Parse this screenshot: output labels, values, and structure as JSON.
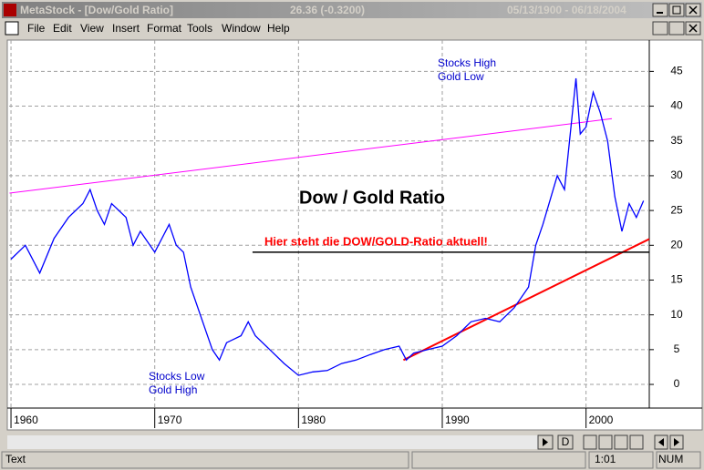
{
  "window": {
    "title": "MetaStock - [Dow/Gold Ratio]",
    "quote": "26.36 (-0.3200)",
    "range": "05/13/1900 - 06/18/2004"
  },
  "menu": [
    "File",
    "Edit",
    "View",
    "Insert",
    "Format",
    "Tools",
    "Window",
    "Help"
  ],
  "chart_data": {
    "type": "line",
    "title": "Dow / Gold Ratio",
    "x": [
      1960,
      1961,
      1962,
      1963,
      1964,
      1965,
      1965.5,
      1966,
      1966.5,
      1967,
      1968,
      1968.5,
      1969,
      1970,
      1971,
      1971.5,
      1972,
      1972.5,
      1973,
      1973.5,
      1974,
      1974.5,
      1975,
      1976,
      1976.5,
      1977,
      1978,
      1979,
      1980,
      1981,
      1982,
      1983,
      1984,
      1985,
      1986,
      1987,
      1987.5,
      1988,
      1989,
      1990,
      1991,
      1992,
      1993,
      1994,
      1995,
      1996,
      1996.5,
      1997,
      1998,
      1998.5,
      1999,
      1999.3,
      1999.6,
      2000,
      2000.5,
      2001,
      2001.5,
      2002,
      2002.5,
      2003,
      2003.5,
      2004
    ],
    "series": [
      {
        "color": "#0000ff",
        "values": [
          18,
          20,
          16,
          21,
          24,
          26,
          28,
          25,
          23,
          26,
          24,
          20,
          22,
          19,
          23,
          20,
          19,
          14,
          11,
          8,
          5,
          3.5,
          6,
          7,
          9,
          7,
          5,
          3,
          1.3,
          1.8,
          2,
          3,
          3.5,
          4.3,
          5,
          5.5,
          3.5,
          4.5,
          5,
          5.5,
          7,
          9,
          9.5,
          9,
          11,
          14,
          20,
          23,
          30,
          28,
          38,
          44,
          36,
          37,
          42,
          39,
          35,
          27,
          22,
          26,
          24,
          26.4
        ]
      }
    ],
    "trendlines": [
      {
        "color": "#ff00ff",
        "x": [
          1959.9,
          2001.8
        ],
        "values": [
          27.5,
          38.2
        ]
      },
      {
        "color": "#ff0000",
        "x": [
          1987.3,
          2004.4
        ],
        "values": [
          3.5,
          20.9
        ]
      },
      {
        "color": "#000000",
        "x": [
          1976.8,
          2004.4
        ],
        "values": [
          19,
          19
        ]
      }
    ],
    "annotations": [
      {
        "lines": [
          "Stocks High",
          "Gold Low"
        ],
        "color": "#0000cc"
      },
      {
        "lines": [
          "Stocks Low",
          "Gold High"
        ],
        "color": "#0000cc"
      },
      {
        "lines": [
          "Hier steht die DOW/GOLD-Ratio aktuell!"
        ],
        "color": "#ff0000"
      }
    ],
    "xlim": [
      1959.87,
      2004.4
    ],
    "ylim": [
      -3.4,
      49.5
    ],
    "xticks": [
      1960,
      1970,
      1980,
      1990,
      2000
    ],
    "yticks": [
      0,
      5,
      10,
      15,
      20,
      25,
      30,
      35,
      40,
      45
    ],
    "grid": true
  },
  "scroll": {
    "button": "D"
  },
  "status": {
    "left": "Text",
    "time": "1:01",
    "mode": "NUM"
  }
}
